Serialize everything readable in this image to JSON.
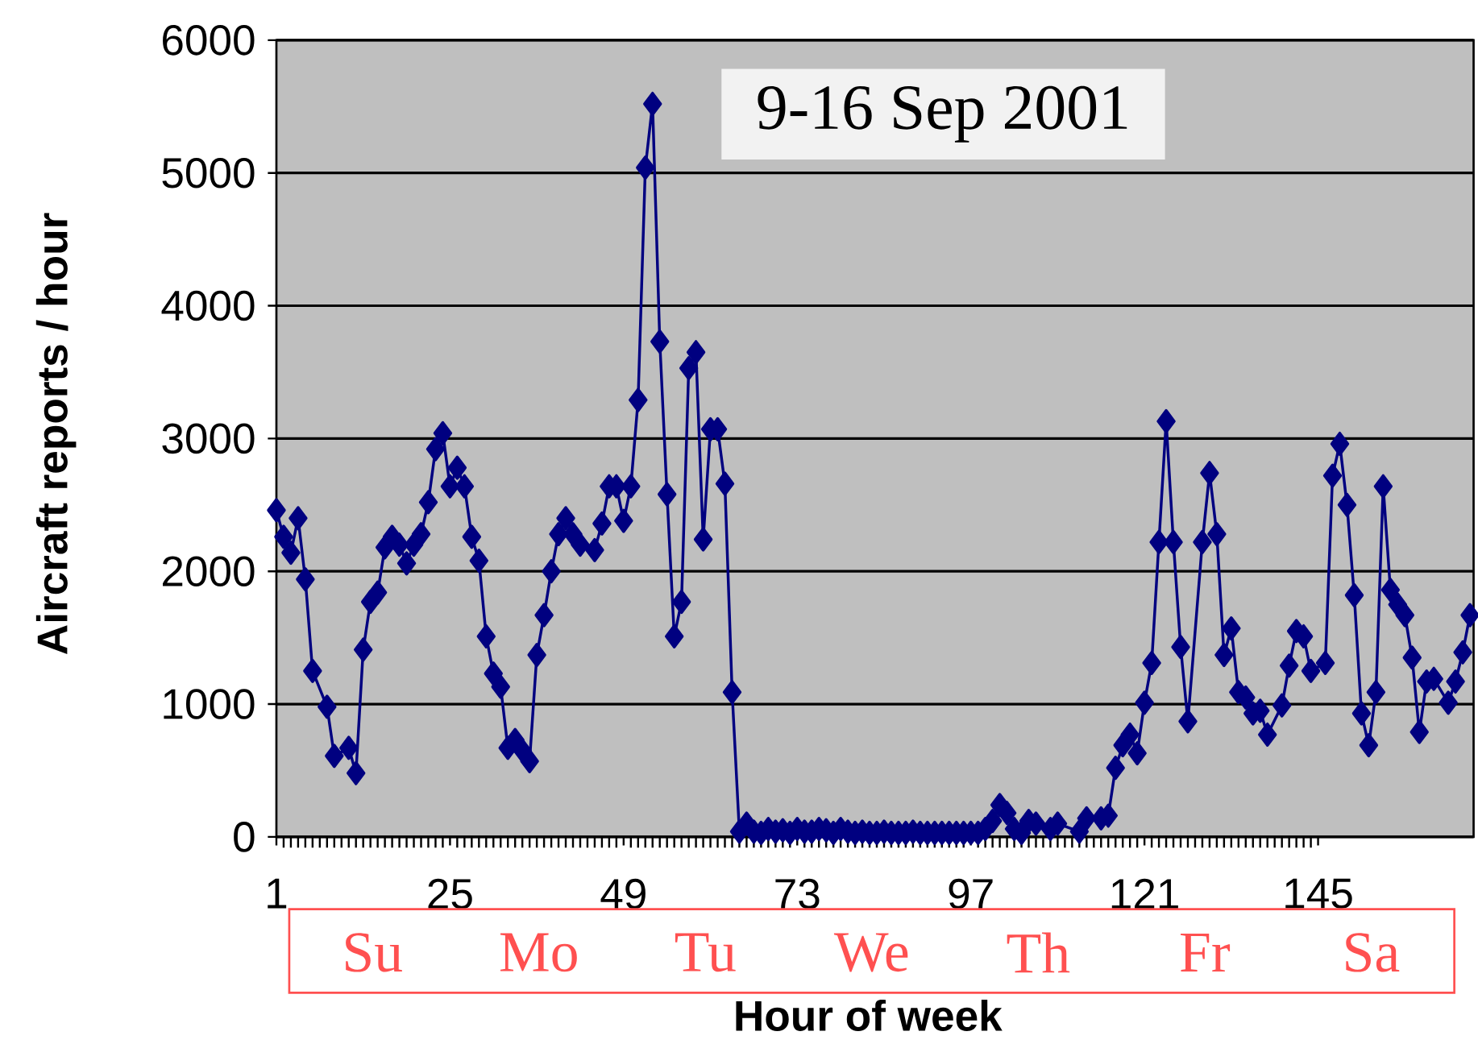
{
  "chart_data": {
    "type": "line",
    "title": "9-16 Sep 2001",
    "xlabel": "Hour of week",
    "ylabel": "Aircraft reports / hour",
    "annotations": [
      "Su",
      "Mo",
      "Tu",
      "We",
      "Th",
      "Fr",
      "Sa"
    ],
    "x": [
      1,
      2,
      3,
      4,
      5,
      6,
      8,
      9,
      11,
      12,
      13,
      14,
      15,
      16,
      17,
      18,
      19,
      20,
      21,
      22,
      23,
      24,
      25,
      26,
      27,
      28,
      29,
      30,
      31,
      32,
      33,
      34,
      35,
      36,
      37,
      38,
      39,
      40,
      41,
      42,
      43,
      45,
      46,
      47,
      48,
      49,
      50,
      51,
      52,
      53,
      54,
      55,
      56,
      57,
      58,
      59,
      60,
      61,
      62,
      63,
      64,
      65,
      66,
      67,
      68,
      69,
      70,
      71,
      72,
      73,
      74,
      75,
      76,
      77,
      78,
      79,
      80,
      81,
      82,
      83,
      84,
      85,
      86,
      87,
      88,
      89,
      90,
      91,
      92,
      93,
      94,
      95,
      96,
      97,
      98,
      99,
      100,
      101,
      102,
      103,
      104,
      105,
      106,
      108,
      109,
      112,
      113,
      115,
      116,
      117,
      118,
      119,
      120,
      121,
      122,
      123,
      124,
      125,
      126,
      127,
      129,
      130,
      131,
      132,
      133,
      134,
      135,
      136,
      137,
      138,
      140,
      141,
      142,
      143,
      144,
      146,
      147,
      148,
      149,
      150,
      151,
      152,
      153,
      154,
      155,
      156,
      157,
      158,
      159,
      160,
      161,
      163,
      164,
      165,
      166
    ],
    "values": [
      2460,
      2260,
      2140,
      2400,
      1940,
      1250,
      980,
      610,
      670,
      480,
      1410,
      1770,
      1840,
      2180,
      2260,
      2200,
      2060,
      2200,
      2280,
      2520,
      2920,
      3040,
      2640,
      2780,
      2640,
      2260,
      2080,
      1510,
      1230,
      1130,
      670,
      730,
      650,
      570,
      1370,
      1670,
      2000,
      2280,
      2400,
      2280,
      2200,
      2160,
      2360,
      2640,
      2640,
      2380,
      2640,
      3290,
      5040,
      5520,
      3730,
      2580,
      1510,
      1770,
      3530,
      3650,
      2240,
      3070,
      3070,
      2660,
      1090,
      40,
      100,
      40,
      30,
      60,
      40,
      50,
      30,
      60,
      40,
      40,
      60,
      50,
      30,
      60,
      40,
      30,
      40,
      30,
      30,
      40,
      30,
      30,
      30,
      40,
      30,
      30,
      30,
      30,
      30,
      30,
      30,
      30,
      30,
      60,
      120,
      240,
      180,
      60,
      30,
      120,
      100,
      60,
      100,
      40,
      140,
      140,
      160,
      520,
      690,
      770,
      630,
      1010,
      1310,
      2220,
      3130,
      2220,
      1430,
      870,
      2220,
      2740,
      2280,
      1370,
      1570,
      1090,
      1050,
      930,
      950,
      770,
      990,
      1290,
      1550,
      1510,
      1250,
      1310,
      2720,
      2960,
      2500,
      1820,
      930,
      690,
      1090,
      2640,
      1860,
      1750,
      1670,
      1350,
      790,
      1170,
      1190,
      1010,
      1170,
      1390,
      1670
    ],
    "color": "#000080",
    "marker": "diamond",
    "line_style": "solid",
    "xlim": [
      1,
      166.5
    ],
    "ylim": [
      0,
      6000
    ],
    "xticks": [
      1,
      25,
      49,
      73,
      97,
      121,
      145
    ],
    "yticks": [
      0,
      1000,
      2000,
      3000,
      4000,
      5000,
      6000
    ],
    "grid": "y"
  }
}
